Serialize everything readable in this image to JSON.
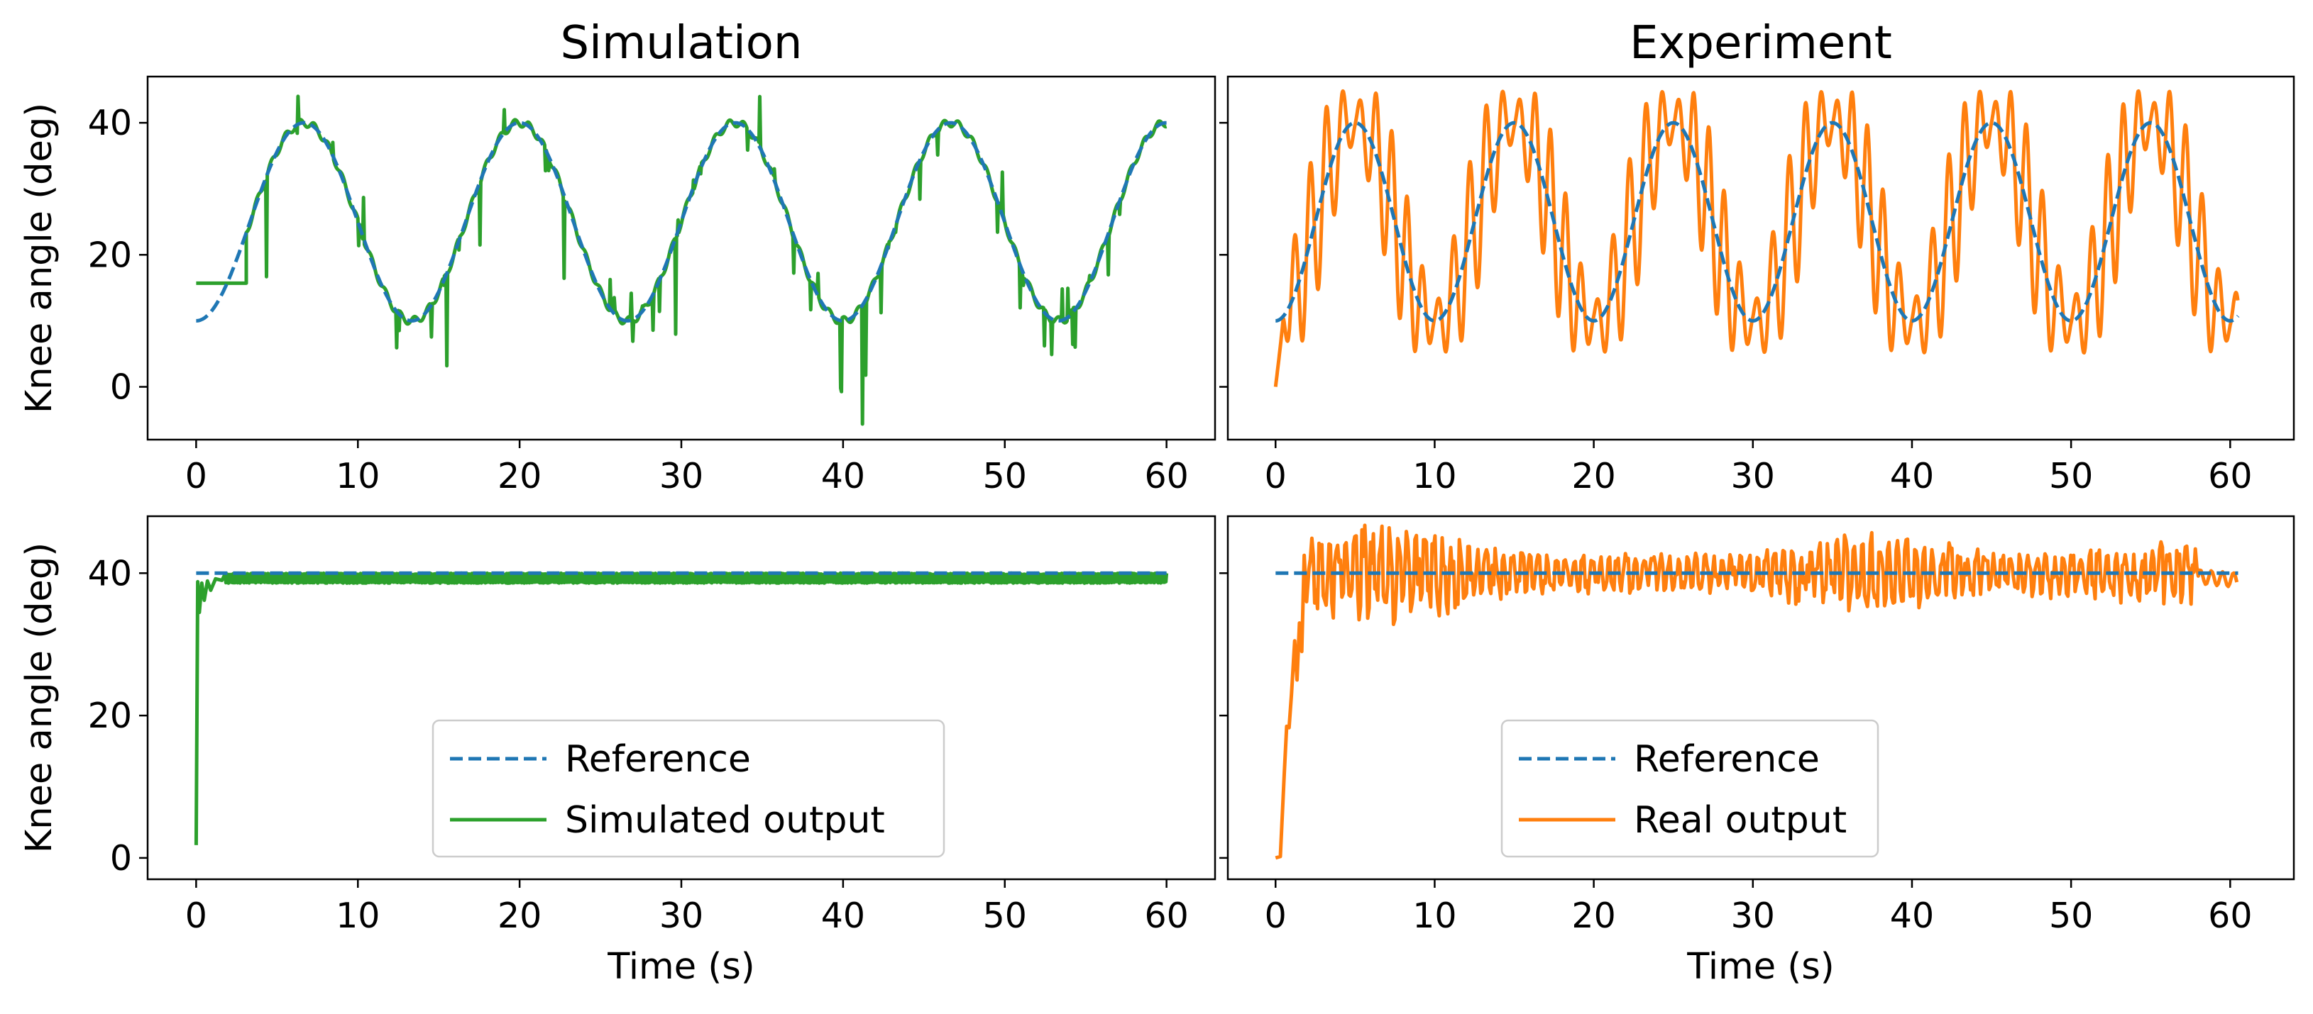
{
  "chart_data": [
    {
      "type": "line",
      "panel": "top-left",
      "title": "Simulation",
      "xlabel": "",
      "ylabel": "Knee angle (deg)",
      "xlim": [
        -3,
        63
      ],
      "ylim": [
        -8,
        47
      ],
      "xticks": [
        0,
        10,
        20,
        30,
        40,
        50,
        60
      ],
      "yticks": [
        0,
        20,
        40
      ],
      "show_xticklabels": true,
      "show_yticklabels": true,
      "series": [
        {
          "name": "Reference",
          "style": "dashed",
          "color": "#1f77b4",
          "model": "sine",
          "t_end": 60,
          "mean": 25,
          "amp": 15,
          "period": 13.33,
          "phase_at_zero": -90
        },
        {
          "name": "Simulated output",
          "style": "solid",
          "color": "#2ca02c",
          "model": "sim_tracking",
          "t_end": 60,
          "initial_value": 15.7,
          "hold_until": 3.1,
          "noise_amp": 2.5
        }
      ]
    },
    {
      "type": "line",
      "panel": "top-right",
      "title": "Experiment",
      "xlabel": "",
      "ylabel": "",
      "xlim": [
        -3,
        64
      ],
      "ylim": [
        -8,
        47
      ],
      "xticks": [
        0,
        10,
        20,
        30,
        40,
        50,
        60
      ],
      "yticks": [
        0,
        20,
        40
      ],
      "show_xticklabels": true,
      "show_yticklabels": false,
      "series": [
        {
          "name": "Reference",
          "style": "dashed",
          "color": "#1f77b4",
          "model": "sine",
          "t_end": 60.5,
          "mean": 25,
          "amp": 15,
          "period": 10,
          "phase_at_zero": -90
        },
        {
          "name": "Real output",
          "style": "solid",
          "color": "#ff7f0e",
          "model": "real_tracking",
          "t_end": 60.5,
          "initial_value": 0,
          "oscillation_amp": 12,
          "oscillation_period": 1.0
        }
      ]
    },
    {
      "type": "line",
      "panel": "bottom-left",
      "title": "",
      "xlabel": "Time (s)",
      "ylabel": "Knee angle (deg)",
      "xlim": [
        -3,
        63
      ],
      "ylim": [
        -3,
        48
      ],
      "xticks": [
        0,
        10,
        20,
        30,
        40,
        50,
        60
      ],
      "yticks": [
        0,
        20,
        40
      ],
      "show_xticklabels": true,
      "show_yticklabels": true,
      "legend": {
        "location": "lower center",
        "entries": [
          "Reference",
          "Simulated output"
        ]
      },
      "series": [
        {
          "name": "Reference",
          "style": "dashed",
          "color": "#1f77b4",
          "model": "constant",
          "t_end": 60,
          "value": 40
        },
        {
          "name": "Simulated output",
          "style": "solid",
          "color": "#2ca02c",
          "model": "sim_step",
          "t_end": 60,
          "initial_value": 1.8,
          "settle_value": 39.3,
          "noise_amp": 0.7
        }
      ]
    },
    {
      "type": "line",
      "panel": "bottom-right",
      "title": "",
      "xlabel": "Time (s)",
      "ylabel": "",
      "xlim": [
        -3,
        64
      ],
      "ylim": [
        -3,
        48
      ],
      "xticks": [
        0,
        10,
        20,
        30,
        40,
        50,
        60
      ],
      "yticks": [
        0,
        20,
        40
      ],
      "show_xticklabels": true,
      "show_yticklabels": false,
      "legend": {
        "location": "lower center",
        "entries": [
          "Reference",
          "Real output"
        ]
      },
      "series": [
        {
          "name": "Reference",
          "style": "dashed",
          "color": "#1f77b4",
          "model": "constant",
          "t_end": 60.5,
          "value": 40
        },
        {
          "name": "Real output",
          "style": "solid",
          "color": "#ff7f0e",
          "model": "real_step",
          "t_end": 60.5,
          "initial_value": 0,
          "settle_value": 40,
          "oscillation_amp": 3
        }
      ]
    }
  ]
}
